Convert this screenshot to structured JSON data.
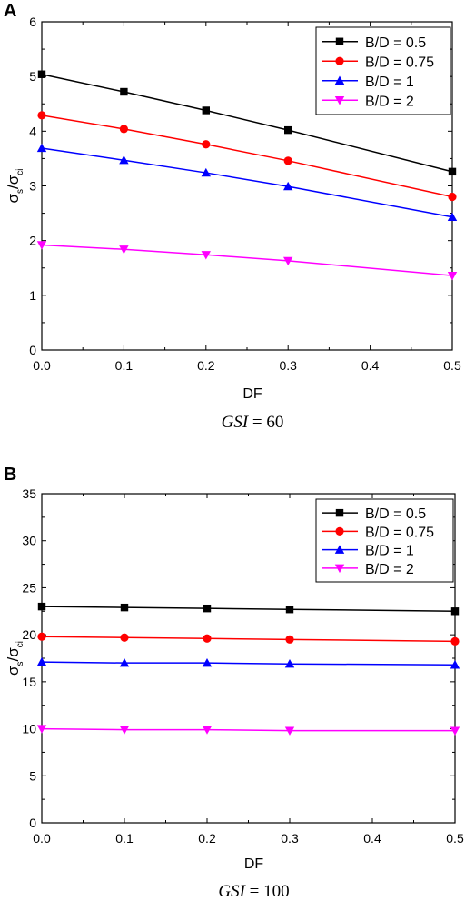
{
  "chart_data": [
    {
      "panel": "A",
      "type": "line",
      "xlabel": "DF",
      "ylabel_main": "σ",
      "ylabel_sub1": "s",
      "ylabel_slash": "/σ",
      "ylabel_sub2": "ci",
      "caption_var": "GSI",
      "caption_eq": " = 60",
      "xlim": [
        0,
        0.5
      ],
      "ylim": [
        0,
        6
      ],
      "xticks": [
        0.0,
        0.1,
        0.2,
        0.3,
        0.4,
        0.5
      ],
      "xtick_labels": [
        "0.0",
        "0.1",
        "0.2",
        "0.3",
        "0.4",
        "0.5"
      ],
      "yticks": [
        0,
        1,
        2,
        3,
        4,
        5,
        6
      ],
      "ytick_labels": [
        "0",
        "1",
        "2",
        "3",
        "4",
        "5",
        "6"
      ],
      "legend_position": "top-right",
      "x": [
        0.0,
        0.1,
        0.2,
        0.3,
        0.5
      ],
      "series": [
        {
          "name": "B/D = 0.5",
          "color": "#000000",
          "marker": "square",
          "values": [
            5.04,
            4.72,
            4.38,
            4.02,
            3.26
          ]
        },
        {
          "name": "B/D = 0.75",
          "color": "#ff0000",
          "marker": "circle",
          "values": [
            4.29,
            4.04,
            3.76,
            3.46,
            2.8
          ]
        },
        {
          "name": "B/D = 1",
          "color": "#0000ff",
          "marker": "triangle-up",
          "values": [
            3.69,
            3.47,
            3.24,
            2.99,
            2.43
          ]
        },
        {
          "name": "B/D = 2",
          "color": "#ff00ff",
          "marker": "triangle-down",
          "values": [
            1.92,
            1.84,
            1.74,
            1.63,
            1.36
          ]
        }
      ]
    },
    {
      "panel": "B",
      "type": "line",
      "xlabel": "DF",
      "ylabel_main": "σ",
      "ylabel_sub1": "s",
      "ylabel_slash": "/σ",
      "ylabel_sub2": "ci",
      "caption_var": "GSI",
      "caption_eq": " = 100",
      "xlim": [
        0,
        0.5
      ],
      "ylim": [
        0,
        35
      ],
      "xticks": [
        0.0,
        0.1,
        0.2,
        0.3,
        0.4,
        0.5
      ],
      "xtick_labels": [
        "0.0",
        "0.1",
        "0.2",
        "0.3",
        "0.4",
        "0.5"
      ],
      "yticks": [
        0,
        5,
        10,
        15,
        20,
        25,
        30,
        35
      ],
      "ytick_labels": [
        "0",
        "5",
        "10",
        "15",
        "20",
        "25",
        "30",
        "35"
      ],
      "legend_position": "top-right",
      "x": [
        0.0,
        0.1,
        0.2,
        0.3,
        0.5
      ],
      "series": [
        {
          "name": "B/D = 0.5",
          "color": "#000000",
          "marker": "square",
          "values": [
            23.0,
            22.9,
            22.8,
            22.7,
            22.5
          ]
        },
        {
          "name": "B/D = 0.75",
          "color": "#ff0000",
          "marker": "circle",
          "values": [
            19.8,
            19.7,
            19.6,
            19.5,
            19.3
          ]
        },
        {
          "name": "B/D = 1",
          "color": "#0000ff",
          "marker": "triangle-up",
          "values": [
            17.1,
            17.0,
            17.0,
            16.9,
            16.8
          ]
        },
        {
          "name": "B/D = 2",
          "color": "#ff00ff",
          "marker": "triangle-down",
          "values": [
            10.0,
            9.9,
            9.9,
            9.8,
            9.8
          ]
        }
      ]
    }
  ]
}
